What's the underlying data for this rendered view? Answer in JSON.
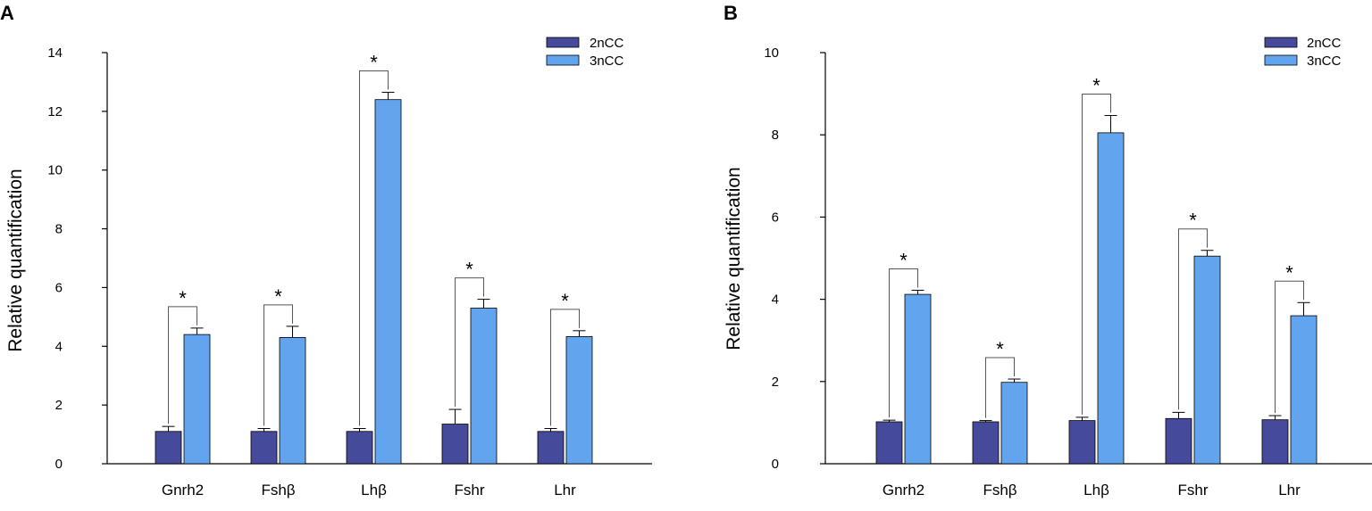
{
  "colors": {
    "s2n": "#454a9a",
    "s3n": "#62a5ee",
    "stroke": "#000000"
  },
  "chart_data": [
    {
      "panel": "A",
      "type": "bar",
      "categories": [
        "Gnrh2",
        "Fshβ",
        "Lhβ",
        "Fshr",
        "Lhr"
      ],
      "series": [
        {
          "name": "2nCC",
          "values": [
            1.1,
            1.1,
            1.1,
            1.35,
            1.1
          ],
          "errors": [
            0.17,
            0.1,
            0.1,
            0.5,
            0.1
          ]
        },
        {
          "name": "3nCC",
          "values": [
            4.4,
            4.3,
            12.4,
            5.3,
            4.33
          ],
          "errors": [
            0.22,
            0.38,
            0.25,
            0.3,
            0.2
          ]
        }
      ],
      "significance": [
        "*",
        "*",
        "*",
        "*",
        "*"
      ],
      "ylabel": "Relative quantification",
      "ylim": [
        0,
        14
      ],
      "yticks": [
        "0",
        "2",
        "4",
        "6",
        "8",
        "10",
        "12",
        "14"
      ],
      "legend": [
        "2nCC",
        "3nCC"
      ]
    },
    {
      "panel": "B",
      "type": "bar",
      "categories": [
        "Gnrh2",
        "Fshβ",
        "Lhβ",
        "Fshr",
        "Lhr"
      ],
      "series": [
        {
          "name": "2nCC",
          "values": [
            1.02,
            1.02,
            1.05,
            1.1,
            1.07
          ],
          "errors": [
            0.04,
            0.03,
            0.08,
            0.15,
            0.1
          ]
        },
        {
          "name": "3nCC",
          "values": [
            4.12,
            1.98,
            8.05,
            5.05,
            3.6
          ],
          "errors": [
            0.1,
            0.08,
            0.42,
            0.14,
            0.32
          ]
        }
      ],
      "significance": [
        "*",
        "*",
        "*",
        "*",
        "*"
      ],
      "ylabel": "Relative quantification",
      "ylim": [
        0,
        10
      ],
      "yticks": [
        "0",
        "2",
        "4",
        "6",
        "8",
        "10"
      ],
      "legend": [
        "2nCC",
        "3nCC"
      ]
    }
  ]
}
